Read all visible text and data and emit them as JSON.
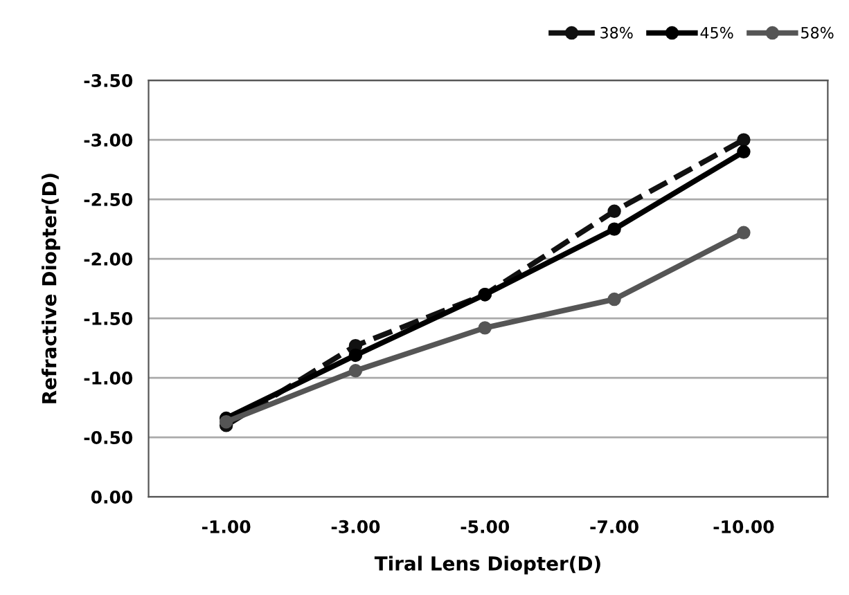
{
  "chart_data": {
    "type": "line",
    "xlabel": "Tiral Lens Diopter(D)",
    "ylabel": "Refractive Diopter(D)",
    "categories": [
      "-1.00",
      "-3.00",
      "-5.00",
      "-7.00",
      "-10.00"
    ],
    "series": [
      {
        "name": "38%",
        "color": "#111111",
        "line_style": "dashed",
        "marker": "circle",
        "values": [
          -0.6,
          -1.27,
          -1.7,
          -2.4,
          -3.0
        ]
      },
      {
        "name": "45%",
        "color": "#000000",
        "line_style": "solid",
        "marker": "circle",
        "values": [
          -0.66,
          -1.19,
          -1.7,
          -2.25,
          -2.9
        ]
      },
      {
        "name": "58%",
        "color": "#555555",
        "line_style": "solid",
        "marker": "circle",
        "values": [
          -0.63,
          -1.06,
          -1.42,
          -1.66,
          -2.22
        ]
      }
    ],
    "ylim": [
      0,
      -3.5
    ],
    "yticks": [
      {
        "value": 0,
        "label": "0.00"
      },
      {
        "value": -0.5,
        "label": "-0.50"
      },
      {
        "value": -1,
        "label": "-1.00"
      },
      {
        "value": -1.5,
        "label": "-1.50"
      },
      {
        "value": -2,
        "label": "-2.00"
      },
      {
        "value": -2.5,
        "label": "-2.50"
      },
      {
        "value": -3,
        "label": "-3.00"
      },
      {
        "value": -3.5,
        "label": "-3.50"
      }
    ],
    "grid": "y",
    "legend": "top right"
  }
}
